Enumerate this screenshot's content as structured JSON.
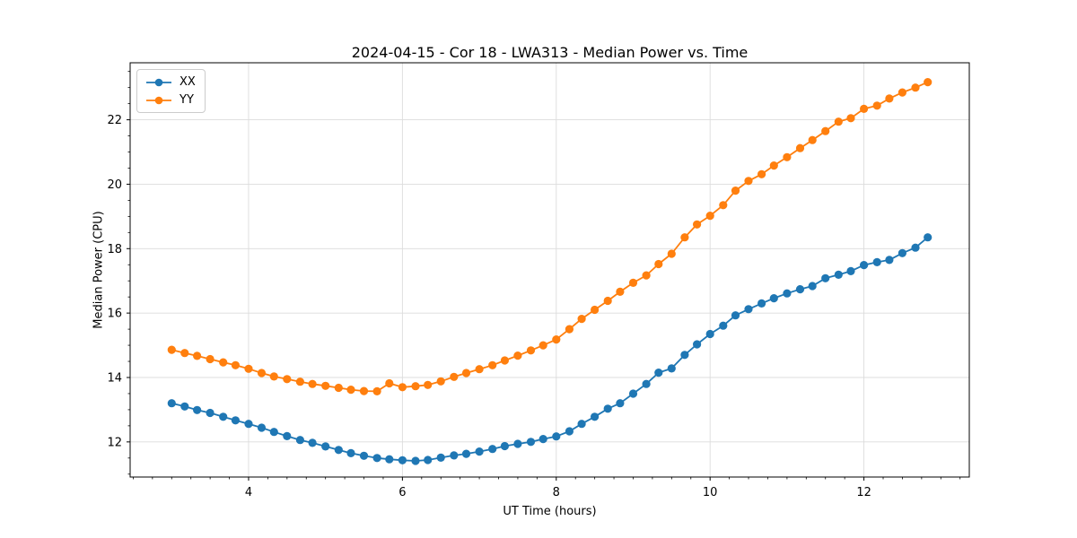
{
  "figure": {
    "kind": "matplotlib-style line chart"
  },
  "chart_data": {
    "type": "line",
    "title": "2024-04-15 - Cor 18 - LWA313 - Median Power vs. Time",
    "xlabel": "UT Time (hours)",
    "ylabel": "Median Power (CPU)",
    "xlim": [
      2.46,
      13.37
    ],
    "ylim": [
      10.91,
      23.77
    ],
    "x_ticks": [
      4,
      6,
      8,
      10,
      12
    ],
    "y_ticks": [
      12,
      14,
      16,
      18,
      20,
      22
    ],
    "x_minor_step": 0.25,
    "y_minor_step": 0.5,
    "grid": true,
    "grid_color": "#dcdcdc",
    "spine_color": "#000000",
    "legend_position": "upper left",
    "x": [
      3.0,
      3.17,
      3.33,
      3.5,
      3.67,
      3.83,
      4.0,
      4.17,
      4.33,
      4.5,
      4.67,
      4.83,
      5.0,
      5.17,
      5.33,
      5.5,
      5.67,
      5.83,
      6.0,
      6.17,
      6.33,
      6.5,
      6.67,
      6.83,
      7.0,
      7.17,
      7.33,
      7.5,
      7.67,
      7.83,
      8.0,
      8.17,
      8.33,
      8.5,
      8.67,
      8.83,
      9.0,
      9.17,
      9.33,
      9.5,
      9.67,
      9.83,
      10.0,
      10.17,
      10.33,
      10.5,
      10.67,
      10.83,
      11.0,
      11.17,
      11.33,
      11.5,
      11.67,
      11.83,
      12.0,
      12.17,
      12.33,
      12.5,
      12.67,
      12.83
    ],
    "series": [
      {
        "name": "XX",
        "color": "#1f77b4",
        "values": [
          13.2,
          13.1,
          12.99,
          12.9,
          12.78,
          12.67,
          12.56,
          12.44,
          12.31,
          12.18,
          12.06,
          11.97,
          11.86,
          11.75,
          11.65,
          11.57,
          11.5,
          11.46,
          11.43,
          11.41,
          11.44,
          11.51,
          11.58,
          11.63,
          11.7,
          11.78,
          11.87,
          11.94,
          12.0,
          12.09,
          12.17,
          12.33,
          12.56,
          12.78,
          13.03,
          13.2,
          13.5,
          13.8,
          14.15,
          14.28,
          14.7,
          15.03,
          15.35,
          15.61,
          15.93,
          16.12,
          16.3,
          16.46,
          16.61,
          16.74,
          16.84,
          17.08,
          17.19,
          17.3,
          17.49,
          17.58,
          17.65,
          17.86,
          18.03,
          18.35
        ]
      },
      {
        "name": "YY",
        "color": "#ff7f0e",
        "values": [
          14.86,
          14.76,
          14.67,
          14.57,
          14.47,
          14.38,
          14.27,
          14.14,
          14.03,
          13.95,
          13.87,
          13.8,
          13.74,
          13.68,
          13.62,
          13.58,
          13.57,
          13.82,
          13.7,
          13.73,
          13.77,
          13.88,
          14.02,
          14.14,
          14.26,
          14.38,
          14.53,
          14.68,
          14.84,
          15.0,
          15.18,
          15.5,
          15.82,
          16.1,
          16.38,
          16.66,
          16.94,
          17.17,
          17.52,
          17.84,
          18.35,
          18.75,
          19.02,
          19.35,
          19.8,
          20.1,
          20.31,
          20.58,
          20.84,
          21.12,
          21.37,
          21.65,
          21.94,
          22.05,
          22.34,
          22.44,
          22.66,
          22.85,
          23.0,
          23.17
        ]
      }
    ]
  }
}
